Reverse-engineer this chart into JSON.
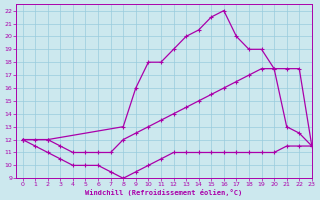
{
  "xlabel": "Windchill (Refroidissement éolien,°C)",
  "xlim": [
    -0.5,
    23
  ],
  "ylim": [
    9,
    22.5
  ],
  "xticks": [
    0,
    1,
    2,
    3,
    4,
    5,
    6,
    7,
    8,
    9,
    10,
    11,
    12,
    13,
    14,
    15,
    16,
    17,
    18,
    19,
    20,
    21,
    22,
    23
  ],
  "yticks": [
    9,
    10,
    11,
    12,
    13,
    14,
    15,
    16,
    17,
    18,
    19,
    20,
    21,
    22
  ],
  "bg_color": "#cce8ee",
  "line_color": "#aa00aa",
  "grid_color": "#99ccdd",
  "line1_x": [
    0,
    1,
    2,
    3,
    4,
    5,
    6,
    7,
    8,
    9,
    10,
    11,
    12,
    13,
    14,
    15,
    16,
    17,
    18,
    19,
    20,
    21,
    22,
    23
  ],
  "line1_y": [
    12,
    11.5,
    11,
    10.5,
    10,
    10,
    10,
    9.5,
    9,
    9.5,
    10,
    10.5,
    11,
    11,
    11,
    11,
    11,
    11,
    11,
    11,
    11,
    11.5,
    11.5,
    11.5
  ],
  "line2_x": [
    0,
    1,
    2,
    3,
    4,
    5,
    6,
    7,
    8,
    9,
    10,
    11,
    12,
    13,
    14,
    15,
    16,
    17,
    18,
    19,
    20,
    21,
    22,
    23
  ],
  "line2_y": [
    12,
    12,
    12,
    11.5,
    11,
    11,
    11,
    11,
    12,
    12.5,
    13,
    13.5,
    14,
    14.5,
    15,
    15.5,
    16,
    16.5,
    17,
    17.5,
    17.5,
    17.5,
    17.5,
    11.5
  ],
  "line3_x": [
    0,
    2,
    8,
    9,
    10,
    11,
    12,
    13,
    14,
    15,
    16,
    17,
    18,
    19,
    20,
    21,
    22,
    23
  ],
  "line3_y": [
    12,
    12,
    13,
    16,
    18,
    18,
    19,
    20,
    20.5,
    21.5,
    22,
    20,
    19,
    19,
    17.5,
    13,
    12.5,
    11.5
  ]
}
